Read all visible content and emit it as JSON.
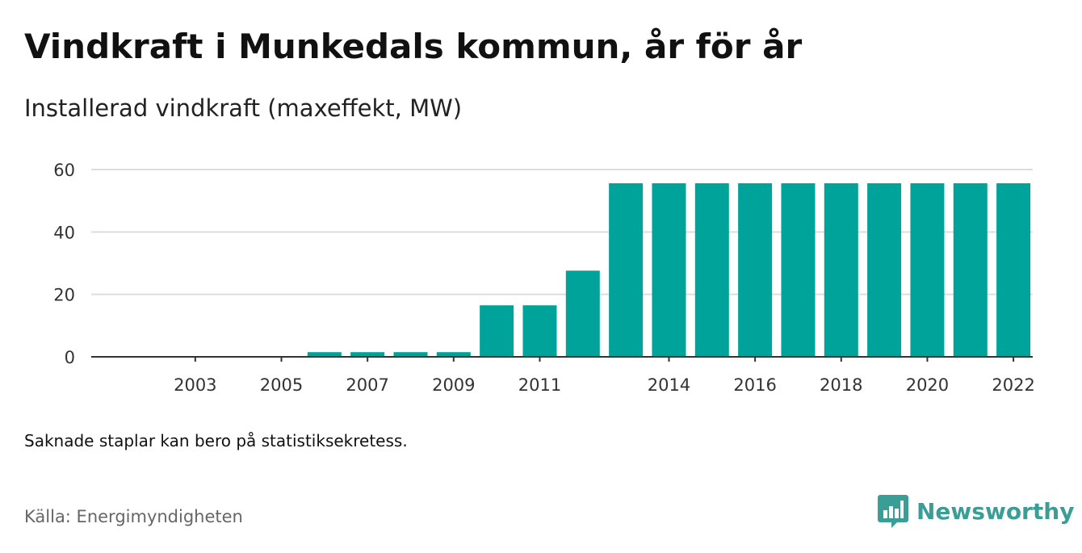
{
  "header": {
    "title": "Vindkraft i Munkedals kommun, år för år",
    "subtitle": "Installerad vindkraft (maxeffekt, MW)"
  },
  "footer": {
    "note": "Saknade staplar kan bero på statistiksekretess.",
    "source": "Källa: Energimyndigheten",
    "brand": "Newsworthy"
  },
  "colors": {
    "bar": "#00a39a",
    "grid": "#dddddd",
    "axis": "#333333",
    "brand": "#3a9e96"
  },
  "chart_data": {
    "type": "bar",
    "categories": [
      "2002",
      "2003",
      "2004",
      "2005",
      "2006",
      "2007",
      "2008",
      "2009",
      "2010",
      "2011",
      "2012",
      "2013",
      "2014",
      "2015",
      "2016",
      "2017",
      "2018",
      "2019",
      "2020",
      "2021",
      "2022"
    ],
    "values": [
      0,
      0,
      0,
      0,
      1.5,
      1.5,
      1.5,
      1.5,
      16.5,
      16.5,
      27.6,
      55.6,
      55.6,
      55.6,
      55.6,
      55.6,
      55.6,
      55.6,
      55.6,
      55.6,
      55.6
    ],
    "x_tick_labels": [
      "2003",
      "2005",
      "2007",
      "2009",
      "2011",
      "2014",
      "2016",
      "2018",
      "2020",
      "2022"
    ],
    "y_ticks": [
      0,
      20,
      40,
      60
    ],
    "ylim": [
      0,
      60
    ],
    "grid": true,
    "legend": "none"
  }
}
